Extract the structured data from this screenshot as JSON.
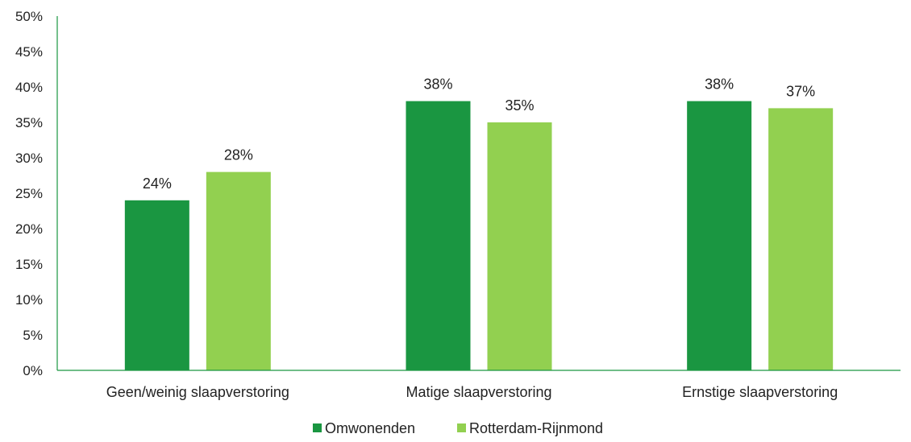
{
  "chart_data": {
    "type": "bar",
    "categories": [
      "Geen/weinig slaapverstoring",
      "Matige slaapverstoring",
      "Ernstige slaapverstoring"
    ],
    "series": [
      {
        "name": "Omwonenden",
        "values": [
          24,
          38,
          38
        ],
        "labels": [
          "24%",
          "38%",
          "38%"
        ],
        "color": "#1a9641"
      },
      {
        "name": "Rotterdam-Rijnmond",
        "values": [
          28,
          35,
          37
        ],
        "labels": [
          "28%",
          "35%",
          "37%"
        ],
        "color": "#92d050"
      }
    ],
    "ylim": [
      0,
      50
    ],
    "yticks": [
      "0%",
      "5%",
      "10%",
      "15%",
      "20%",
      "25%",
      "30%",
      "35%",
      "40%",
      "45%",
      "50%"
    ],
    "ytick_values": [
      0,
      5,
      10,
      15,
      20,
      25,
      30,
      35,
      40,
      45,
      50
    ],
    "axis_color": "#1a9641",
    "grid": false,
    "legend_position": "bottom"
  }
}
